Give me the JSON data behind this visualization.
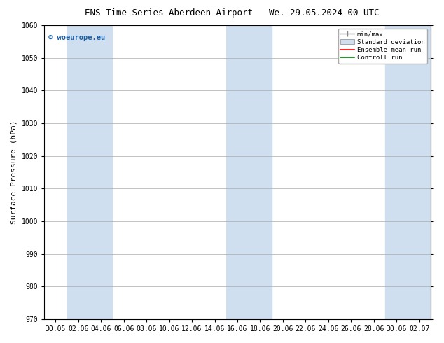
{
  "title": "ENS Time Series Aberdeen Airport",
  "title2": "We. 29.05.2024 00 UTC",
  "ylabel": "Surface Pressure (hPa)",
  "ylim": [
    970,
    1060
  ],
  "yticks": [
    970,
    980,
    990,
    1000,
    1010,
    1020,
    1030,
    1040,
    1050,
    1060
  ],
  "x_labels": [
    "30.05",
    "02.06",
    "04.06",
    "06.06",
    "08.06",
    "10.06",
    "12.06",
    "14.06",
    "16.06",
    "18.06",
    "20.06",
    "22.06",
    "24.06",
    "26.06",
    "28.06",
    "30.06",
    "02.07"
  ],
  "watermark": "© woeurope.eu",
  "bg_color": "#ffffff",
  "plot_bg": "#ffffff",
  "stripe_color": "#cfdff0",
  "grid_color": "#aaaaaa",
  "frame_color": "#000000",
  "title_fontsize": 9,
  "tick_fontsize": 7,
  "ylabel_fontsize": 8
}
